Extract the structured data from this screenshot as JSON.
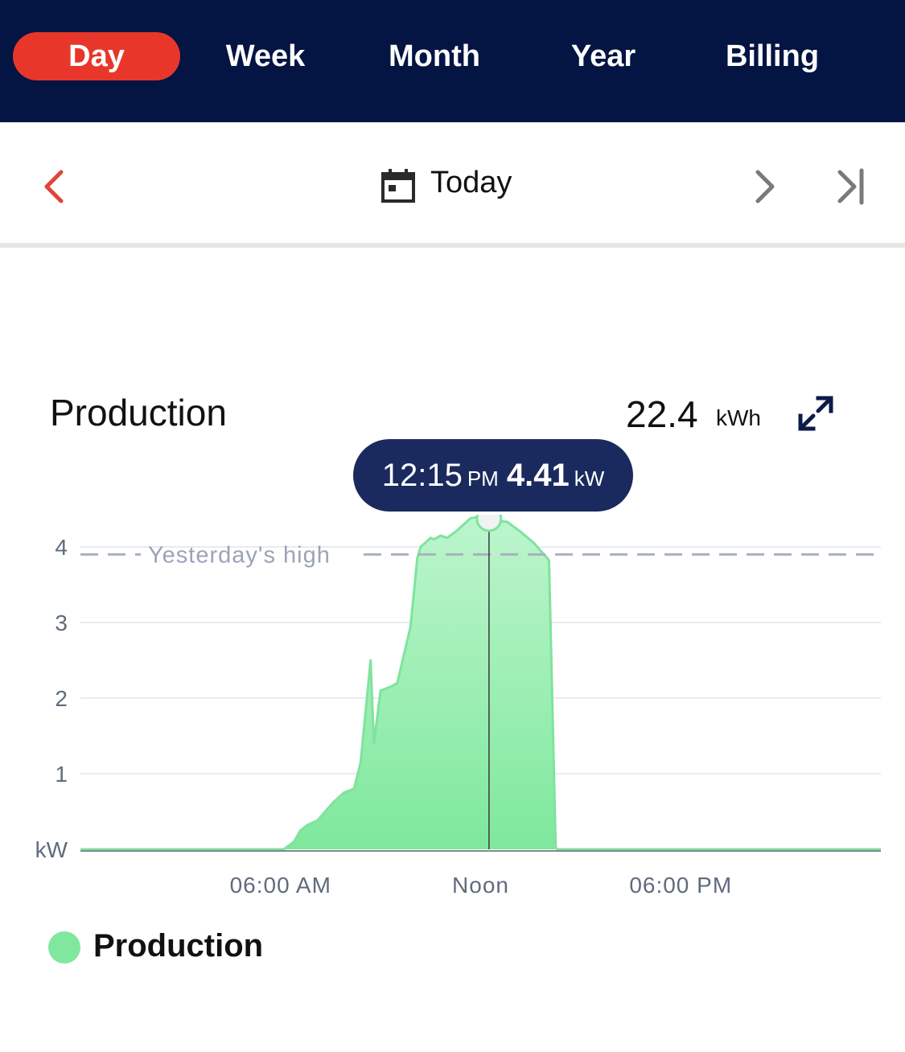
{
  "tabs": [
    {
      "label": "Day",
      "active": true
    },
    {
      "label": "Week",
      "active": false
    },
    {
      "label": "Month",
      "active": false
    },
    {
      "label": "Year",
      "active": false
    },
    {
      "label": "Billing",
      "active": false
    }
  ],
  "date_nav": {
    "label": "Today",
    "prev_icon": "chevron-left-icon",
    "next_icon": "chevron-right-icon",
    "last_icon": "skip-to-end-icon",
    "calendar_icon": "calendar-icon"
  },
  "card": {
    "title": "Production",
    "total_value": "22.4",
    "total_unit": "kWh",
    "expand_icon": "expand-icon"
  },
  "tooltip": {
    "time": "12:15",
    "ampm": "PM",
    "value": "4.41",
    "unit": "kW"
  },
  "legend": {
    "label": "Production",
    "color": "#7fe89e"
  },
  "colors": {
    "header_bg": "#041443",
    "active_tab": "#e8372a",
    "tooltip_bg": "#1b2a5e",
    "area_top": "#bdf5cd",
    "area_bottom": "#7ee89c",
    "area_stroke": "#7fe39e",
    "reference_line": "#a9b0c2"
  },
  "chart_data": {
    "type": "area",
    "series": [
      {
        "name": "Production",
        "x": [
          0,
          6.1,
          6.4,
          6.6,
          6.8,
          7.1,
          7.3,
          7.6,
          7.9,
          8.2,
          8.4,
          8.7,
          8.8,
          9.0,
          9.3,
          9.5,
          9.9,
          10.1,
          10.2,
          10.5,
          10.6,
          10.8,
          11.0,
          11.3,
          11.5,
          11.7,
          12.0,
          12.25,
          12.5,
          12.8,
          13.2,
          13.6,
          13.8,
          14.0,
          14.05,
          14.25,
          14.3,
          24
        ],
        "y": [
          0,
          0,
          0.1,
          0.25,
          0.32,
          0.38,
          0.48,
          0.63,
          0.75,
          0.8,
          1.15,
          2.5,
          1.4,
          2.1,
          2.15,
          2.2,
          2.95,
          3.85,
          4.0,
          4.12,
          4.1,
          4.15,
          4.12,
          4.22,
          4.3,
          4.38,
          4.4,
          4.41,
          4.35,
          4.33,
          4.2,
          4.05,
          3.95,
          3.85,
          3.82,
          0.02,
          0,
          0
        ]
      }
    ],
    "reference_lines": [
      {
        "label": "Yesterday's high",
        "y": 3.9
      }
    ],
    "highlight": {
      "x": 12.25,
      "y": 4.41
    },
    "xlim": [
      0,
      24
    ],
    "ylim": [
      0,
      4
    ],
    "yticks": [
      {
        "value": 0,
        "label": "kW"
      },
      {
        "value": 1,
        "label": "1"
      },
      {
        "value": 2,
        "label": "2"
      },
      {
        "value": 3,
        "label": "3"
      },
      {
        "value": 4,
        "label": "4"
      }
    ],
    "xticks": [
      {
        "value": 6,
        "label": "06:00 AM"
      },
      {
        "value": 12,
        "label": "Noon"
      },
      {
        "value": 18,
        "label": "06:00 PM"
      }
    ],
    "grid": true
  }
}
